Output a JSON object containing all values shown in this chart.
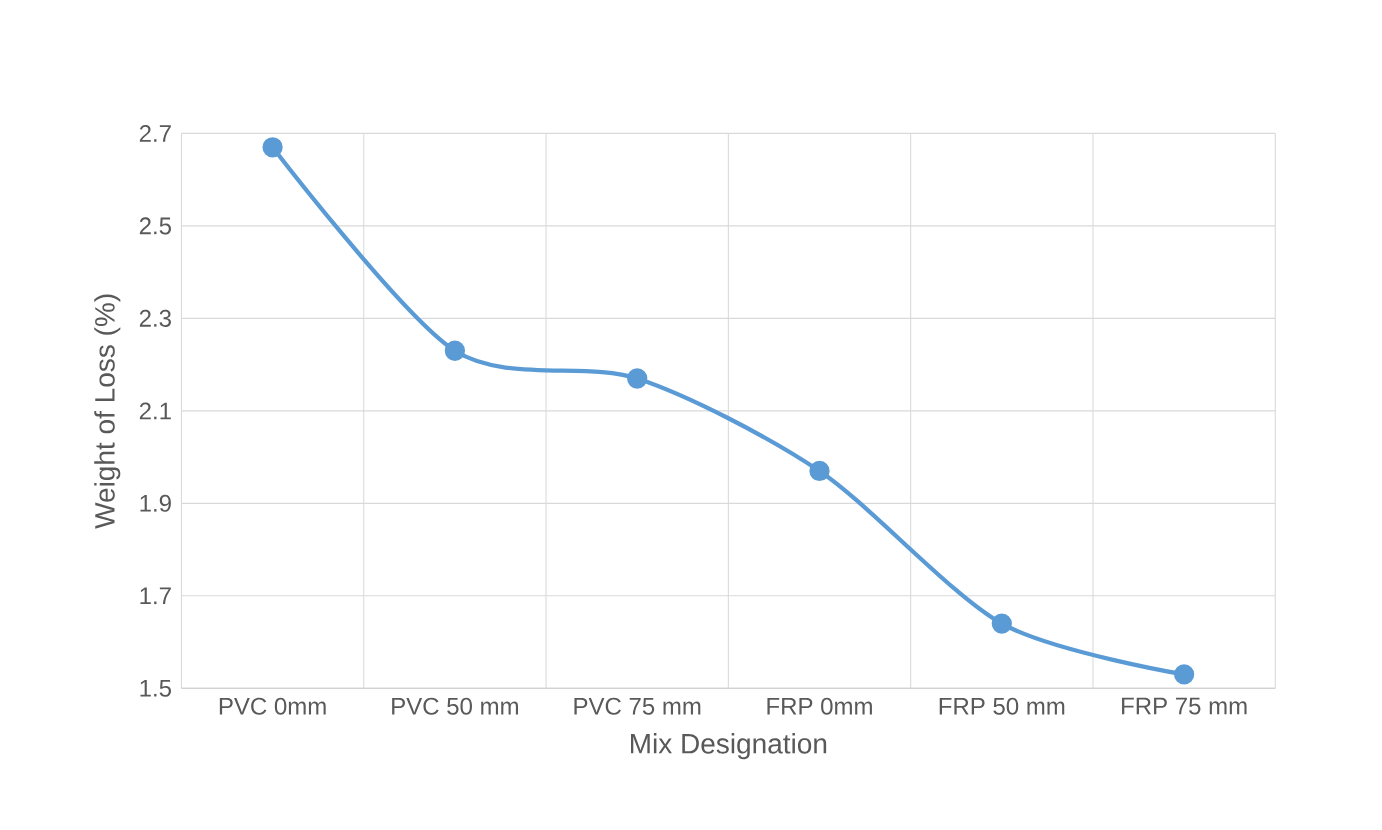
{
  "chart_data": {
    "type": "line",
    "xlabel": "Mix Designation",
    "ylabel": "Weight of Loss (%)",
    "categories": [
      "PVC 0mm",
      "PVC 50 mm",
      "PVC 75 mm",
      "FRP 0mm",
      "FRP 50 mm",
      "FRP 75 mm"
    ],
    "series": [
      {
        "color": "#5b9bd5",
        "values": [
          2.67,
          2.23,
          2.17,
          1.97,
          1.64,
          1.53
        ]
      }
    ],
    "ylim": [
      1.5,
      2.7
    ],
    "yticks": [
      1.5,
      1.7,
      1.9,
      2.1,
      2.3,
      2.5,
      2.7
    ],
    "grid": true,
    "marker": "circle",
    "line_style": "solid"
  }
}
